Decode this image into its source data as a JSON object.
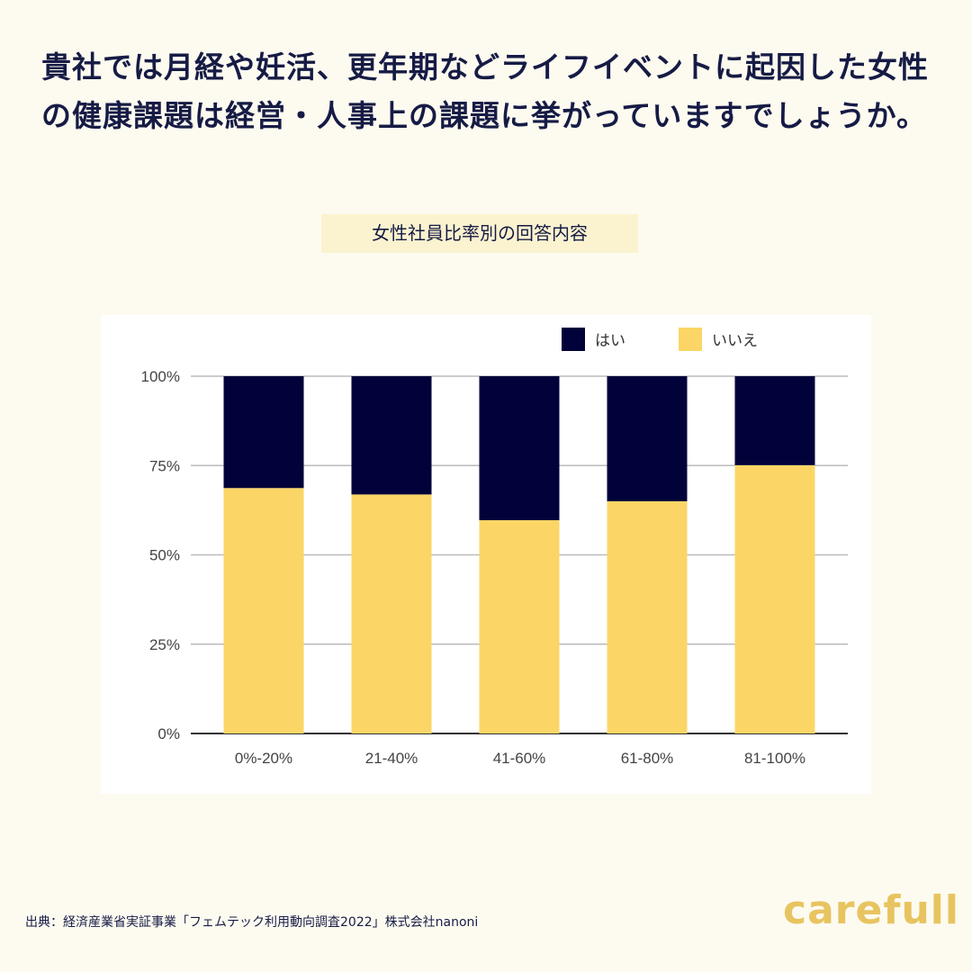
{
  "title": "貴社では月経や妊活、更年期などライフイベントに起因した女性の健康課題は経営・人事上の課題に挙がっていますでしょうか。",
  "subtitle": "女性社員比率別の回答内容",
  "source": "出典：経済産業省実証事業「フェムテック利用動向調査2022」株式会社nanoni",
  "logo": "carefull",
  "chart_data": {
    "type": "bar",
    "stacked": true,
    "categories": [
      "0%-20%",
      "21-40%",
      "41-60%",
      "61-80%",
      "81-100%"
    ],
    "series": [
      {
        "name": "いいえ",
        "color": "#fbd666",
        "values": [
          68.7,
          66.9,
          59.7,
          65.0,
          75.1
        ]
      },
      {
        "name": "はい",
        "color": "#02023a",
        "values": [
          31.3,
          33.1,
          40.3,
          35.0,
          24.9
        ]
      }
    ],
    "ylim": [
      0,
      100
    ],
    "yticks": [
      "0%",
      "25%",
      "50%",
      "75%",
      "100%"
    ],
    "grid": true,
    "legend": "top-right",
    "legend_order": [
      "はい",
      "いいえ"
    ]
  }
}
